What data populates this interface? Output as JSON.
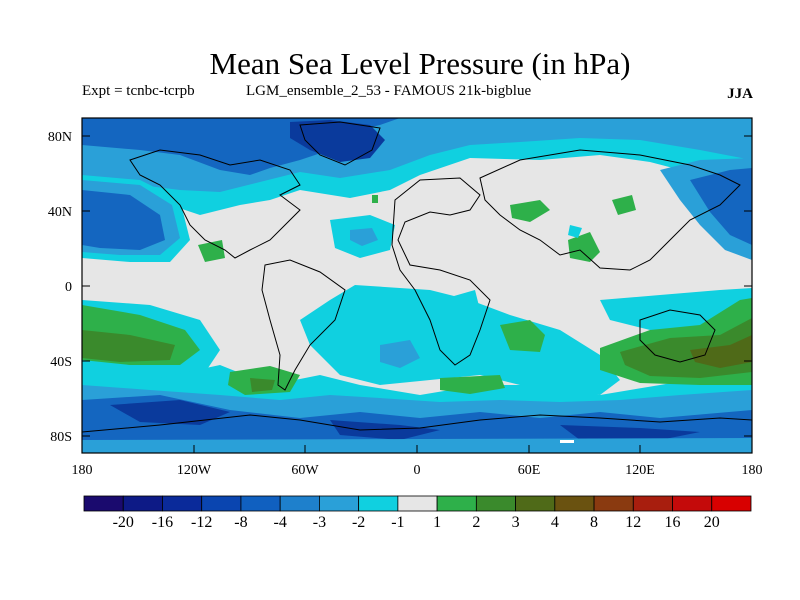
{
  "title": "Mean Sea Level Pressure (in hPa)",
  "subtitle_left": "Expt = tcnbc-tcrpb",
  "subtitle_mid": "LGM_ensemble_2_53 - FAMOUS 21k-bigblue",
  "season": "JJA",
  "lat_ticks": [
    "80N",
    "40N",
    "0",
    "40S",
    "80S"
  ],
  "lon_ticks": [
    "180",
    "120W",
    "60W",
    "0",
    "60E",
    "120E",
    "180"
  ],
  "colorbar": {
    "labels": [
      "-20",
      "-16",
      "-12",
      "-8",
      "-4",
      "-3",
      "-2",
      "-1",
      "1",
      "2",
      "3",
      "4",
      "8",
      "12",
      "16",
      "20"
    ],
    "colors": [
      "#1a0a6e",
      "#0d1a86",
      "#0a2a9a",
      "#0a45b0",
      "#1060c0",
      "#1e80cc",
      "#2aa0d8",
      "#10d0e0",
      "#e6e6e6",
      "#2eb04a",
      "#3a8a2c",
      "#4f6a18",
      "#6a5210",
      "#8a3a10",
      "#a81e0e",
      "#c40a0a",
      "#d80000"
    ]
  },
  "colors": {
    "deep_blue": "#0a3a9c",
    "mid_blue": "#1466c0",
    "light_blue": "#2aa0d8",
    "cyan": "#10d0e0",
    "neutral": "#e6e6e6",
    "green": "#2eb04a",
    "dark_green": "#3a8a2c",
    "olive": "#4f6a18"
  }
}
